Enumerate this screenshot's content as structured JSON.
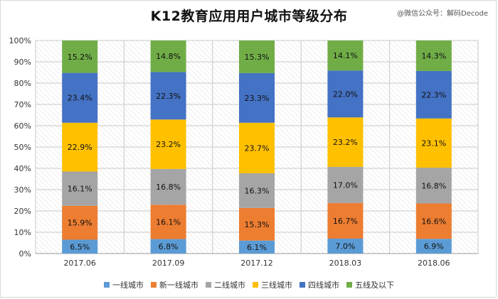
{
  "chart_data": {
    "type": "bar",
    "stacked": true,
    "title": "K12教育应用用户城市等级分布",
    "watermark": "@微信公众号：解码Decode",
    "categories": [
      "2017.06",
      "2017.09",
      "2017.12",
      "2018.03",
      "2018.06"
    ],
    "yticks": [
      "0%",
      "10%",
      "20%",
      "30%",
      "40%",
      "50%",
      "60%",
      "70%",
      "80%",
      "90%",
      "100%"
    ],
    "ylim": [
      0,
      100
    ],
    "legend_position": "bottom",
    "series": [
      {
        "name": "一线城市",
        "color": "#5b9bd5",
        "values": [
          6.5,
          6.8,
          6.1,
          7.0,
          6.9
        ],
        "labels": [
          "6.5%",
          "6.8%",
          "6.1%",
          "7.0%",
          "6.9%"
        ]
      },
      {
        "name": "新一线城市",
        "color": "#ed7d31",
        "values": [
          15.9,
          16.1,
          15.3,
          16.7,
          16.6
        ],
        "labels": [
          "15.9%",
          "16.1%",
          "15.3%",
          "16.7%",
          "16.6%"
        ]
      },
      {
        "name": "二线城市",
        "color": "#a5a5a5",
        "values": [
          16.1,
          16.8,
          16.3,
          17.0,
          16.8
        ],
        "labels": [
          "16.1%",
          "16.8%",
          "16.3%",
          "17.0%",
          "16.8%"
        ]
      },
      {
        "name": "三线城市",
        "color": "#ffc000",
        "values": [
          22.9,
          23.2,
          23.7,
          23.2,
          23.1
        ],
        "labels": [
          "22.9%",
          "23.2%",
          "23.7%",
          "23.2%",
          "23.1%"
        ]
      },
      {
        "name": "四线城市",
        "color": "#4472c4",
        "values": [
          23.4,
          22.3,
          23.3,
          22.0,
          22.3
        ],
        "labels": [
          "23.4%",
          "22.3%",
          "23.3%",
          "22.0%",
          "22.3%"
        ]
      },
      {
        "name": "五线及以下",
        "color": "#70ad47",
        "values": [
          15.2,
          14.8,
          15.3,
          14.1,
          14.3
        ],
        "labels": [
          "15.2%",
          "14.8%",
          "15.3%",
          "14.1%",
          "14.3%"
        ]
      }
    ]
  }
}
